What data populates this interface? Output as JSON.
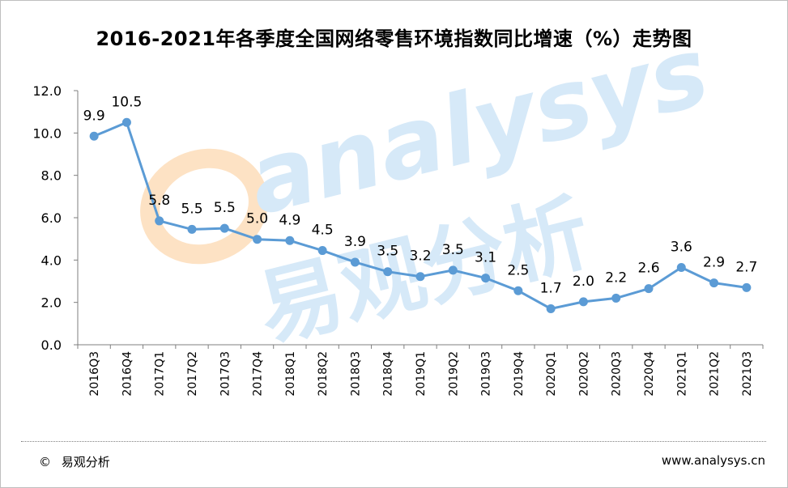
{
  "title": "2016-2021年各季度全国网络零售环境指数同比增速（%）走势图",
  "footer": {
    "copyright_symbol": "©",
    "brand": "易观分析",
    "url": "www.analysys.cn"
  },
  "watermark": {
    "latin": "analysys",
    "cjk": "易观分析"
  },
  "colors": {
    "series": "#5b9bd5",
    "axis": "#7f7f7f",
    "watermark_blue": "#d6e9f8",
    "watermark_orange": "#fde2c4"
  },
  "chart_data": {
    "type": "line",
    "title": "2016-2021年各季度全国网络零售环境指数同比增速（%）走势图",
    "categories": [
      "2016Q3",
      "2016Q4",
      "2017Q1",
      "2017Q2",
      "2017Q3",
      "2017Q4",
      "2018Q1",
      "2018Q2",
      "2018Q3",
      "2018Q4",
      "2019Q1",
      "2019Q2",
      "2019Q3",
      "2019Q4",
      "2020Q1",
      "2020Q2",
      "2020Q3",
      "2020Q4",
      "2021Q1",
      "2021Q2",
      "2021Q3"
    ],
    "values": [
      9.9,
      10.5,
      5.8,
      5.5,
      5.5,
      5.0,
      4.9,
      4.5,
      3.9,
      3.5,
      3.2,
      3.5,
      3.1,
      2.5,
      1.7,
      2.0,
      2.2,
      2.6,
      3.6,
      2.9,
      2.7
    ],
    "plotted_values": [
      9.85,
      10.5,
      5.85,
      5.45,
      5.5,
      4.98,
      4.92,
      4.45,
      3.9,
      3.45,
      3.22,
      3.52,
      3.15,
      2.55,
      1.7,
      2.03,
      2.2,
      2.65,
      3.65,
      2.92,
      2.7
    ],
    "yticks": [
      "0.0",
      "2.0",
      "4.0",
      "6.0",
      "8.0",
      "10.0",
      "12.0"
    ],
    "ylim": [
      0,
      12
    ],
    "xlabel": "",
    "ylabel": "",
    "grid": false,
    "legend": "none"
  }
}
